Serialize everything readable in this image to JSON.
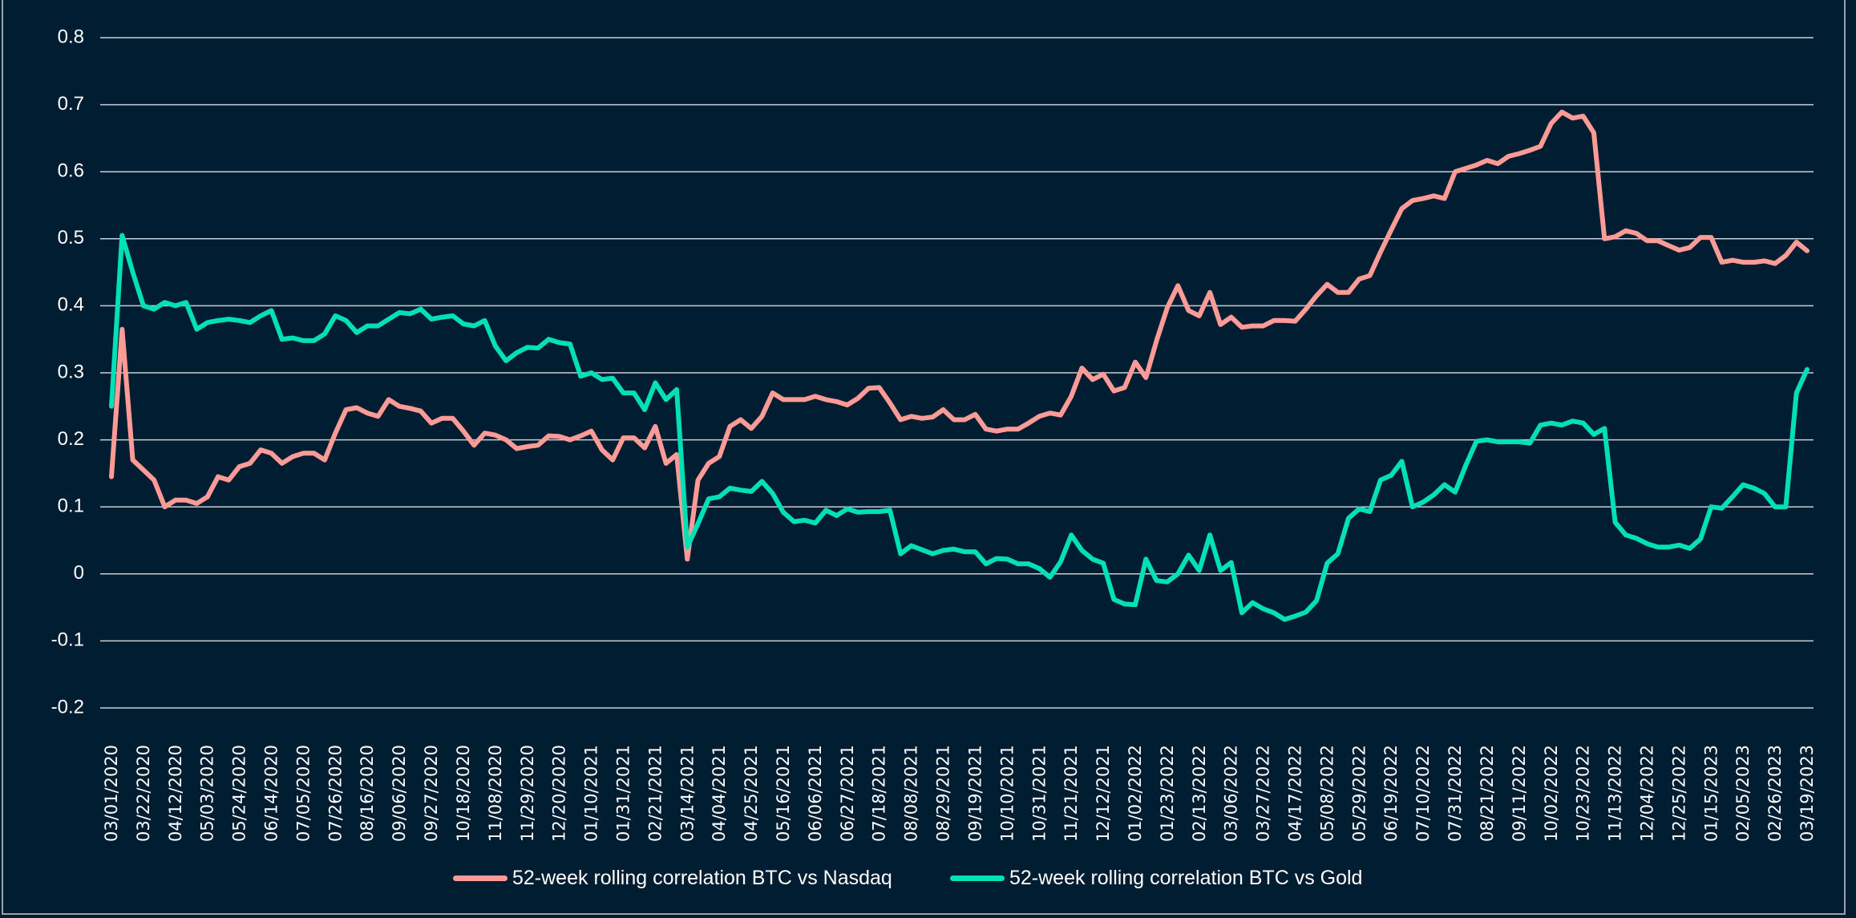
{
  "chart_data": {
    "type": "line",
    "title": "",
    "xlabel": "",
    "ylabel": "",
    "ylim": [
      -0.2,
      0.8
    ],
    "yticks": [
      "0.8",
      "0.7",
      "0.6",
      "0.5",
      "0.4",
      "0.3",
      "0.2",
      "0.1",
      "0",
      "-0.1",
      "-0.2"
    ],
    "grid": true,
    "legend_position": "bottom",
    "x_frequency": "weekly",
    "x_ticks": [
      "03/01/2020",
      "03/22/2020",
      "04/12/2020",
      "05/03/2020",
      "05/24/2020",
      "06/14/2020",
      "07/05/2020",
      "07/26/2020",
      "08/16/2020",
      "09/06/2020",
      "09/27/2020",
      "10/18/2020",
      "11/08/2020",
      "11/29/2020",
      "12/20/2020",
      "01/10/2021",
      "01/31/2021",
      "02/21/2021",
      "03/14/2021",
      "04/04/2021",
      "04/25/2021",
      "05/16/2021",
      "06/06/2021",
      "06/27/2021",
      "07/18/2021",
      "08/08/2021",
      "08/29/2021",
      "09/19/2021",
      "10/10/2021",
      "10/31/2021",
      "11/21/2021",
      "12/12/2021",
      "01/02/2022",
      "01/23/2022",
      "02/13/2022",
      "03/06/2022",
      "03/27/2022",
      "04/17/2022",
      "05/08/2022",
      "05/29/2022",
      "06/19/2022",
      "07/10/2022",
      "07/31/2022",
      "08/21/2022",
      "09/11/2022",
      "10/02/2022",
      "10/23/2022",
      "11/13/2022",
      "12/04/2022",
      "12/25/2022",
      "01/15/2023",
      "02/05/2023",
      "02/26/2023",
      "03/19/2023"
    ],
    "series": [
      {
        "name": "52-week rolling correlation BTC vs Nasdaq",
        "color": "#ff9b96",
        "values": [
          0.145,
          0.365,
          0.17,
          0.155,
          0.14,
          0.1,
          0.11,
          0.11,
          0.105,
          0.115,
          0.145,
          0.14,
          0.16,
          0.165,
          0.185,
          0.18,
          0.165,
          0.175,
          0.18,
          0.18,
          0.17,
          0.21,
          0.245,
          0.248,
          0.24,
          0.235,
          0.26,
          0.25,
          0.247,
          0.243,
          0.225,
          0.232,
          0.232,
          0.213,
          0.192,
          0.21,
          0.207,
          0.2,
          0.187,
          0.19,
          0.192,
          0.206,
          0.205,
          0.2,
          0.206,
          0.213,
          0.185,
          0.17,
          0.203,
          0.203,
          0.188,
          0.22,
          0.165,
          0.178,
          0.022,
          0.14,
          0.165,
          0.175,
          0.22,
          0.23,
          0.217,
          0.235,
          0.27,
          0.26,
          0.26,
          0.26,
          0.265,
          0.26,
          0.257,
          0.252,
          0.262,
          0.277,
          0.278,
          0.255,
          0.23,
          0.235,
          0.232,
          0.234,
          0.245,
          0.23,
          0.23,
          0.238,
          0.216,
          0.213,
          0.216,
          0.216,
          0.225,
          0.235,
          0.24,
          0.237,
          0.265,
          0.307,
          0.29,
          0.298,
          0.273,
          0.278,
          0.316,
          0.293,
          0.348,
          0.397,
          0.43,
          0.393,
          0.385,
          0.42,
          0.372,
          0.383,
          0.368,
          0.37,
          0.37,
          0.378,
          0.378,
          0.377,
          0.395,
          0.415,
          0.432,
          0.42,
          0.42,
          0.44,
          0.445,
          0.48,
          0.513,
          0.545,
          0.557,
          0.56,
          0.564,
          0.56,
          0.6,
          0.605,
          0.61,
          0.617,
          0.612,
          0.623,
          0.627,
          0.632,
          0.638,
          0.672,
          0.689,
          0.68,
          0.683,
          0.658,
          0.5,
          0.503,
          0.512,
          0.508,
          0.497,
          0.497,
          0.49,
          0.483,
          0.487,
          0.502,
          0.502,
          0.465,
          0.468,
          0.465,
          0.465,
          0.467,
          0.463,
          0.475,
          0.495,
          0.482
        ]
      },
      {
        "name": "52-week rolling correlation BTC vs Gold",
        "color": "#00e0b8",
        "values": [
          0.25,
          0.505,
          0.45,
          0.4,
          0.395,
          0.405,
          0.4,
          0.405,
          0.365,
          0.375,
          0.378,
          0.38,
          0.378,
          0.375,
          0.385,
          0.393,
          0.35,
          0.352,
          0.348,
          0.348,
          0.358,
          0.385,
          0.378,
          0.36,
          0.37,
          0.37,
          0.38,
          0.39,
          0.388,
          0.395,
          0.38,
          0.383,
          0.385,
          0.373,
          0.37,
          0.378,
          0.34,
          0.318,
          0.33,
          0.338,
          0.337,
          0.35,
          0.345,
          0.343,
          0.295,
          0.3,
          0.29,
          0.292,
          0.27,
          0.27,
          0.245,
          0.285,
          0.26,
          0.275,
          0.04,
          0.075,
          0.112,
          0.115,
          0.128,
          0.125,
          0.123,
          0.138,
          0.12,
          0.092,
          0.078,
          0.08,
          0.076,
          0.095,
          0.087,
          0.097,
          0.092,
          0.093,
          0.093,
          0.095,
          0.03,
          0.042,
          0.036,
          0.03,
          0.035,
          0.037,
          0.033,
          0.033,
          0.015,
          0.023,
          0.022,
          0.015,
          0.015,
          0.008,
          -0.005,
          0.018,
          0.058,
          0.035,
          0.022,
          0.016,
          -0.038,
          -0.045,
          -0.046,
          0.022,
          -0.01,
          -0.012,
          0,
          0.028,
          0.005,
          0.058,
          0.005,
          0.017,
          -0.058,
          -0.043,
          -0.052,
          -0.058,
          -0.068,
          -0.063,
          -0.057,
          -0.04,
          0.016,
          0.03,
          0.083,
          0.097,
          0.093,
          0.14,
          0.147,
          0.168,
          0.1,
          0.107,
          0.118,
          0.133,
          0.122,
          0.162,
          0.198,
          0.2,
          0.197,
          0.197,
          0.197,
          0.195,
          0.222,
          0.225,
          0.222,
          0.228,
          0.225,
          0.208,
          0.217,
          0.077,
          0.058,
          0.053,
          0.045,
          0.04,
          0.04,
          0.043,
          0.038,
          0.052,
          0.1,
          0.098,
          0.115,
          0.133,
          0.128,
          0.12,
          0.1,
          0.1,
          0.27,
          0.305
        ]
      }
    ]
  }
}
